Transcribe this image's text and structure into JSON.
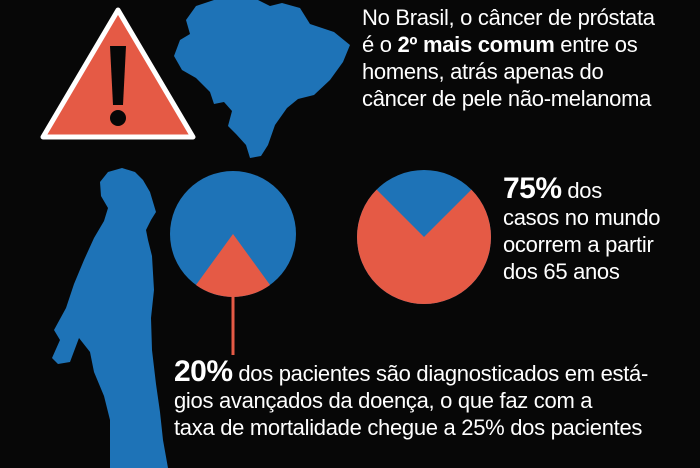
{
  "colors": {
    "background": "#070707",
    "blue": "#1e73b7",
    "red": "#e55a45",
    "text": "#ffffff"
  },
  "icons": [
    "warning-icon",
    "brazil-map-icon",
    "man-silhouette-icon"
  ],
  "warning": {
    "symbol": "!"
  },
  "brasil_text": {
    "line1": "No Brasil, o câncer de próstata",
    "line2_pre": "é o ",
    "line2_bold": "2º mais comum",
    "line2_post": " entre os",
    "line3": "homens, atrás apenas do",
    "line4": "câncer de pele não-melanoma"
  },
  "stat_75": {
    "percent": "75%",
    "fraction": 0.75,
    "line1_rest": " dos",
    "line2": "casos no mundo",
    "line3": "ocorrem a partir",
    "line4": "dos 65 anos"
  },
  "stat_20": {
    "percent": "20%",
    "fraction": 0.2,
    "line1_rest": " dos pacientes são diagnosticados em está-",
    "line2": "gios avançados da doença, o que faz com a",
    "line3": "taxa de mortalidade chegue a 25% dos pacientes"
  }
}
